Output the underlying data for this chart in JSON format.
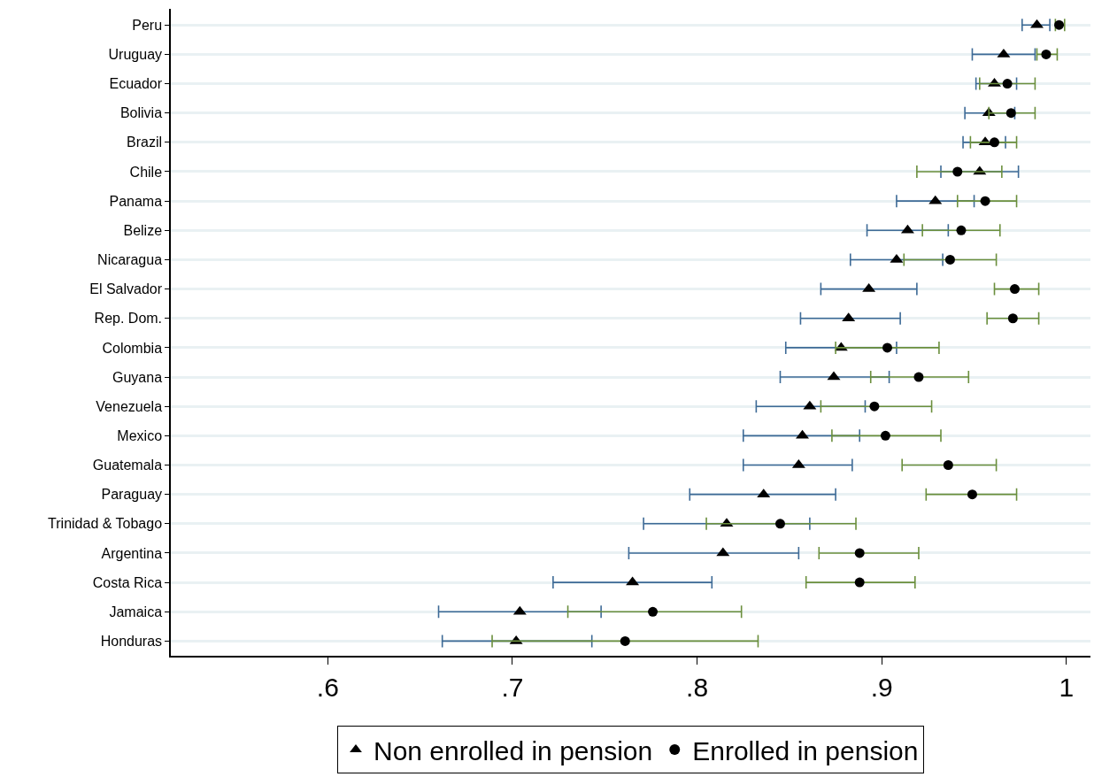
{
  "chart_data": {
    "type": "scatter",
    "orientation": "horizontal",
    "categories": [
      "Peru",
      "Uruguay",
      "Ecuador",
      "Bolivia",
      "Brazil",
      "Chile",
      "Panama",
      "Belize",
      "Nicaragua",
      "El Salvador",
      "Rep. Dom.",
      "Colombia",
      "Guyana",
      "Venezuela",
      "Mexico",
      "Guatemala",
      "Paraguay",
      "Trinidad & Tobago",
      "Argentina",
      "Costa Rica",
      "Jamaica",
      "Honduras"
    ],
    "series": [
      {
        "name": "Non enrolled in pension",
        "color": "#000000",
        "marker": "triangle",
        "values": [
          0.984,
          0.966,
          0.961,
          0.958,
          0.956,
          0.953,
          0.929,
          0.914,
          0.908,
          0.893,
          0.882,
          0.878,
          0.874,
          0.861,
          0.857,
          0.855,
          0.836,
          0.816,
          0.814,
          0.765,
          0.704,
          0.702
        ],
        "errors": [
          [
            0.976,
            0.991
          ],
          [
            0.949,
            0.983
          ],
          [
            0.951,
            0.973
          ],
          [
            0.945,
            0.972
          ],
          [
            0.944,
            0.967
          ],
          [
            0.932,
            0.974
          ],
          [
            0.908,
            0.95
          ],
          [
            0.892,
            0.936
          ],
          [
            0.883,
            0.933
          ],
          [
            0.867,
            0.919
          ],
          [
            0.856,
            0.91
          ],
          [
            0.848,
            0.908
          ],
          [
            0.845,
            0.904
          ],
          [
            0.832,
            0.891
          ],
          [
            0.825,
            0.888
          ],
          [
            0.825,
            0.884
          ],
          [
            0.796,
            0.875
          ],
          [
            0.771,
            0.861
          ],
          [
            0.763,
            0.855
          ],
          [
            0.722,
            0.808
          ],
          [
            0.66,
            0.748
          ],
          [
            0.662,
            0.743
          ]
        ]
      },
      {
        "name": "Enrolled in pension",
        "color": "#000000",
        "marker": "circle",
        "values": [
          0.996,
          0.989,
          0.968,
          0.97,
          0.961,
          0.941,
          0.956,
          0.943,
          0.937,
          0.972,
          0.971,
          0.903,
          0.92,
          0.896,
          0.902,
          0.936,
          0.949,
          0.845,
          0.888,
          0.888,
          0.776,
          0.761
        ],
        "errors": [
          [
            0.994,
            0.999
          ],
          [
            0.984,
            0.995
          ],
          [
            0.953,
            0.983
          ],
          [
            0.958,
            0.983
          ],
          [
            0.948,
            0.973
          ],
          [
            0.919,
            0.965
          ],
          [
            0.941,
            0.973
          ],
          [
            0.922,
            0.964
          ],
          [
            0.912,
            0.962
          ],
          [
            0.961,
            0.985
          ],
          [
            0.957,
            0.985
          ],
          [
            0.875,
            0.931
          ],
          [
            0.894,
            0.947
          ],
          [
            0.867,
            0.927
          ],
          [
            0.873,
            0.932
          ],
          [
            0.911,
            0.962
          ],
          [
            0.924,
            0.973
          ],
          [
            0.805,
            0.886
          ],
          [
            0.866,
            0.92
          ],
          [
            0.859,
            0.918
          ],
          [
            0.73,
            0.824
          ],
          [
            0.689,
            0.833
          ]
        ]
      }
    ],
    "xlim": [
      0.515,
      1.013
    ],
    "xticks": [
      {
        "value": 0.6,
        "label": ".6"
      },
      {
        "value": 0.7,
        "label": ".7"
      },
      {
        "value": 0.8,
        "label": ".8"
      },
      {
        "value": 0.9,
        "label": ".9"
      },
      1
    ],
    "grid": "y",
    "legend": "bottom"
  }
}
